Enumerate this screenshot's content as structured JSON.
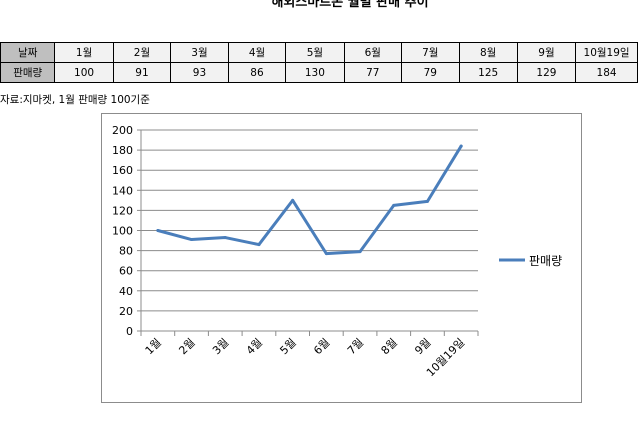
{
  "title": "해외스마트폰 월별 판매 추이",
  "table": {
    "row_headers": [
      "날짜",
      "판매량"
    ],
    "months": [
      "1월",
      "2월",
      "3월",
      "4월",
      "5월",
      "6월",
      "7월",
      "8월",
      "9월",
      "10월19일"
    ],
    "sales": [
      "100",
      "91",
      "93",
      "86",
      "130",
      "77",
      "79",
      "125",
      "129",
      "184"
    ]
  },
  "source": "자료:지마켓, 1월 판매량 100기준",
  "chart_data": {
    "type": "line",
    "categories": [
      "1월",
      "2월",
      "3월",
      "4월",
      "5월",
      "6월",
      "7월",
      "8월",
      "9월",
      "10월19일"
    ],
    "series": [
      {
        "name": "판매량",
        "values": [
          100,
          91,
          93,
          86,
          130,
          77,
          79,
          125,
          129,
          184
        ],
        "color": "#4a7ebb"
      }
    ],
    "ylim": [
      0,
      200
    ],
    "ytick_step": 20,
    "grid": true,
    "legend": "right",
    "title": "",
    "xlabel": "",
    "ylabel": ""
  }
}
